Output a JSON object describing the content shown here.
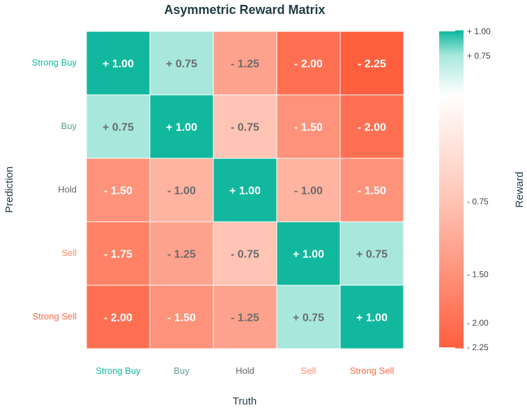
{
  "chart_data": {
    "type": "heatmap",
    "title": "Asymmetric Reward Matrix",
    "xlabel": "Truth",
    "ylabel": "Prediction",
    "colorbar_label": "Reward",
    "x_categories": [
      "Strong Buy",
      "Buy",
      "Hold",
      "Sell",
      "Strong Sell"
    ],
    "y_categories": [
      "Strong Buy",
      "Buy",
      "Hold",
      "Sell",
      "Strong Sell"
    ],
    "values": [
      [
        1.0,
        0.75,
        -1.25,
        -2.0,
        -2.25
      ],
      [
        0.75,
        1.0,
        -0.75,
        -1.5,
        -2.0
      ],
      [
        -1.5,
        -1.0,
        1.0,
        -1.0,
        -1.5
      ],
      [
        -1.75,
        -1.25,
        -0.75,
        1.0,
        0.75
      ],
      [
        -2.0,
        -1.5,
        -1.25,
        0.75,
        1.0
      ]
    ],
    "cell_labels": [
      [
        "+ 1.00",
        "+ 0.75",
        "- 1.25",
        "- 2.00",
        "- 2.25"
      ],
      [
        "+ 0.75",
        "+ 1.00",
        "- 0.75",
        "- 1.50",
        "- 2.00"
      ],
      [
        "- 1.50",
        "- 1.00",
        "+ 1.00",
        "- 1.00",
        "- 1.50"
      ],
      [
        "- 1.75",
        "- 1.25",
        "- 0.75",
        "+ 1.00",
        "+ 0.75"
      ],
      [
        "- 2.00",
        "- 1.50",
        "- 1.25",
        "+ 0.75",
        "+ 1.00"
      ]
    ],
    "category_colors": [
      "#11b89e",
      "#5b9e91",
      "#666666",
      "#ff8a6b",
      "#ff6a45"
    ],
    "colorbar": {
      "range": [
        -2.25,
        1.0
      ],
      "ticks": [
        1.0,
        0.75,
        -0.75,
        -1.5,
        -2.0,
        -2.25
      ],
      "tick_labels": [
        "+ 1.00",
        "+ 0.75",
        "- 0.75",
        "- 1.50",
        "- 2.00",
        "- 2.25"
      ]
    },
    "colors": {
      "high": "#11b89e",
      "light": "#a8e8dc",
      "mid": "#ffffff",
      "pale": "#ffc4b4",
      "low": "#ff5f3f"
    }
  }
}
